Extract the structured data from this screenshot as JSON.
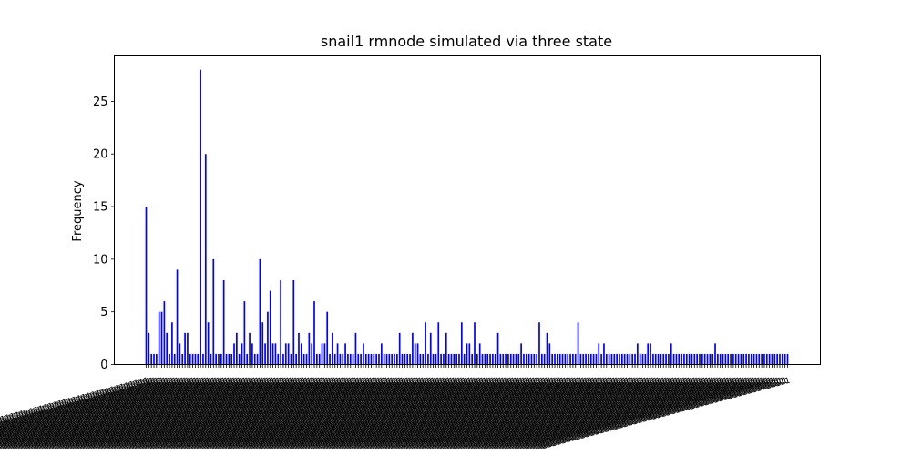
{
  "chart_data": {
    "type": "bar",
    "title": "snail1 rmnode simulated via three state",
    "xlabel": "",
    "ylabel": "Frequency",
    "ylim": [
      0,
      29.4
    ],
    "yticks": [
      0,
      5,
      10,
      15,
      20,
      25
    ],
    "grid": false,
    "bar_color": "#0000ff",
    "category_label": "1111111111111111111111111111111111111111111111111111",
    "values": [
      15,
      3,
      1,
      1,
      1,
      5,
      5,
      6,
      3,
      1,
      4,
      1,
      9,
      2,
      1,
      3,
      3,
      1,
      1,
      1,
      1,
      28,
      1,
      20,
      4,
      1,
      10,
      1,
      1,
      1,
      8,
      1,
      1,
      1,
      2,
      3,
      1,
      2,
      6,
      1,
      3,
      2,
      1,
      1,
      10,
      4,
      2,
      5,
      7,
      2,
      2,
      1,
      8,
      1,
      2,
      2,
      1,
      8,
      1,
      3,
      2,
      1,
      1,
      3,
      2,
      6,
      1,
      1,
      2,
      2,
      5,
      1,
      3,
      1,
      2,
      1,
      1,
      2,
      1,
      1,
      1,
      3,
      1,
      1,
      2,
      1,
      1,
      1,
      1,
      1,
      1,
      2,
      1,
      1,
      1,
      1,
      1,
      1,
      3,
      1,
      1,
      1,
      1,
      3,
      2,
      2,
      1,
      1,
      4,
      1,
      3,
      1,
      1,
      4,
      1,
      1,
      3,
      1,
      1,
      1,
      1,
      1,
      4,
      1,
      2,
      2,
      1,
      4,
      1,
      2,
      1,
      1,
      1,
      1,
      1,
      1,
      3,
      1,
      1,
      1,
      1,
      1,
      1,
      1,
      1,
      2,
      1,
      1,
      1,
      1,
      1,
      1,
      4,
      1,
      1,
      3,
      2,
      1,
      1,
      1,
      1,
      1,
      1,
      1,
      1,
      1,
      1,
      4,
      1,
      1,
      1,
      1,
      1,
      1,
      1,
      2,
      1,
      2,
      1,
      1,
      1,
      1,
      1,
      1,
      1,
      1,
      1,
      1,
      1,
      1,
      2,
      1,
      1,
      1,
      2,
      2,
      1,
      1,
      1,
      1,
      1,
      1,
      1,
      2,
      1,
      1,
      1,
      1,
      1,
      1,
      1,
      1,
      1,
      1,
      1,
      1,
      1,
      1,
      1,
      1,
      2,
      1,
      1,
      1,
      1,
      1,
      1,
      1,
      1,
      1,
      1,
      1,
      1,
      1,
      1,
      1,
      1,
      1,
      1,
      1,
      1,
      1,
      1,
      1,
      1,
      1,
      1,
      1,
      1
    ]
  }
}
